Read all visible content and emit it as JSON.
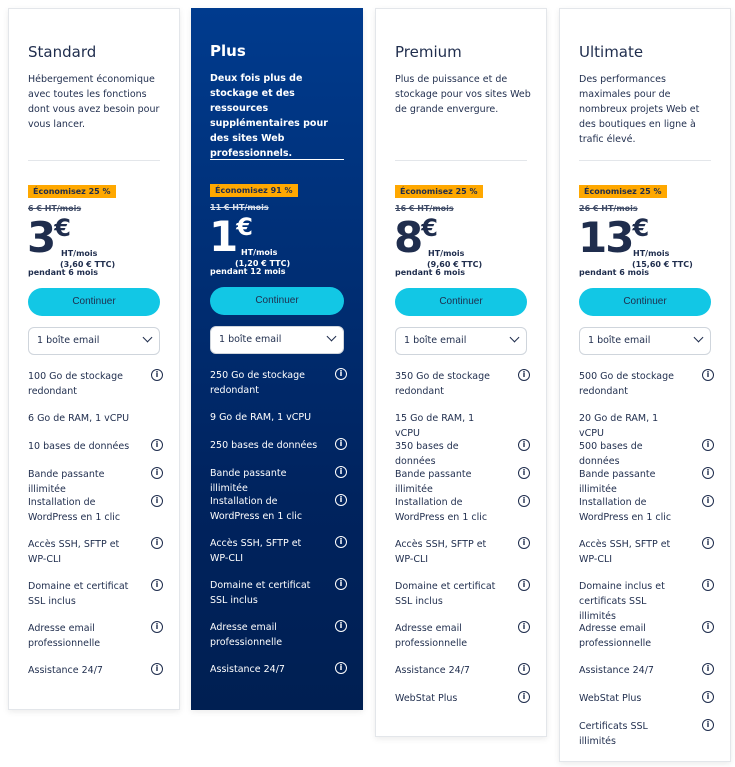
{
  "colors": {
    "accent": "#12c7e5",
    "badge": "#ffa800",
    "dark_card": "#003b8e",
    "text": "#1f2d4d"
  },
  "plans": [
    {
      "name": "Standard",
      "desc": "Hébergement économique avec toutes les fonctions dont vous avez besoin pour vous lancer.",
      "badge": "Économisez 25 %",
      "old_price": "6 € HT/mois",
      "price": "3",
      "currency": "€",
      "unit": "HT/mois",
      "ttc": "(3,60 € TTC)",
      "period": "pendant 6 mois",
      "button": "Continuer",
      "select": "1 boîte email",
      "features": [
        {
          "text": "100 Go de stockage redondant",
          "info": true
        },
        {
          "text": "6 Go de RAM, 1 vCPU",
          "info": false
        },
        {
          "text": "10 bases de données",
          "info": true
        },
        {
          "text": "Bande passante illimitée",
          "info": true
        },
        {
          "text": "Installation de WordPress en 1 clic",
          "info": true
        },
        {
          "text": "Accès SSH, SFTP et WP-CLI",
          "info": true
        },
        {
          "text": "Domaine et certificat SSL inclus",
          "info": true
        },
        {
          "text": "Adresse email professionnelle",
          "info": true
        },
        {
          "text": "Assistance 24/7",
          "info": true
        }
      ]
    },
    {
      "name": "Plus",
      "desc": "Deux fois plus de stockage et des ressources supplémentaires pour des sites Web professionnels.",
      "badge": "Économisez 91 %",
      "old_price": "11 € HT/mois",
      "price": "1",
      "currency": "€",
      "unit": "HT/mois",
      "ttc": "(1,20 € TTC)",
      "period": "pendant 12 mois",
      "button": "Continuer",
      "select": "1 boîte email",
      "features": [
        {
          "text": "250 Go de stockage redondant",
          "info": true
        },
        {
          "text": "9 Go de RAM, 1 vCPU",
          "info": false
        },
        {
          "text": "250 bases de données",
          "info": true
        },
        {
          "text": "Bande passante illimitée",
          "info": true
        },
        {
          "text": "Installation de WordPress en 1 clic",
          "info": true
        },
        {
          "text": "Accès SSH, SFTP et WP-CLI",
          "info": true
        },
        {
          "text": "Domaine et certificat SSL inclus",
          "info": true
        },
        {
          "text": "Adresse email professionnelle",
          "info": true
        },
        {
          "text": "Assistance 24/7",
          "info": true
        }
      ]
    },
    {
      "name": "Premium",
      "desc": "Plus de puissance et de stockage pour vos sites Web de grande envergure.",
      "badge": "Économisez 25 %",
      "old_price": "16 € HT/mois",
      "price": "8",
      "currency": "€",
      "unit": "HT/mois",
      "ttc": "(9,60 € TTC)",
      "period": "pendant 6 mois",
      "button": "Continuer",
      "select": "1 boîte email",
      "features": [
        {
          "text": "350 Go de stockage redondant",
          "info": true
        },
        {
          "text": "15 Go de RAM, 1 vCPU",
          "info": false
        },
        {
          "text": "350 bases de données",
          "info": true
        },
        {
          "text": "Bande passante illimitée",
          "info": true
        },
        {
          "text": "Installation de WordPress en 1 clic",
          "info": true
        },
        {
          "text": "Accès SSH, SFTP et WP-CLI",
          "info": true
        },
        {
          "text": "Domaine et certificat SSL inclus",
          "info": true
        },
        {
          "text": "Adresse email professionnelle",
          "info": true
        },
        {
          "text": "Assistance 24/7",
          "info": true
        },
        {
          "text": "WebStat Plus",
          "info": true
        }
      ]
    },
    {
      "name": "Ultimate",
      "desc": "Des performances maximales pour de nombreux projets Web et des boutiques en ligne à trafic élevé.",
      "badge": "Économisez 25 %",
      "old_price": "26 € HT/mois",
      "price": "13",
      "currency": "€",
      "unit": "HT/mois",
      "ttc": "(15,60 € TTC)",
      "period": "pendant 6 mois",
      "button": "Continuer",
      "select": "1 boîte email",
      "features": [
        {
          "text": "500 Go de stockage redondant",
          "info": true
        },
        {
          "text": "20 Go de RAM, 1 vCPU",
          "info": false
        },
        {
          "text": "500 bases de données",
          "info": true
        },
        {
          "text": "Bande passante illimitée",
          "info": true
        },
        {
          "text": "Installation de WordPress en 1 clic",
          "info": true
        },
        {
          "text": "Accès SSH, SFTP et WP-CLI",
          "info": true
        },
        {
          "text": "Domaine inclus et certificats SSL illimités",
          "info": true
        },
        {
          "text": "Adresse email professionnelle",
          "info": true
        },
        {
          "text": "Assistance 24/7",
          "info": true
        },
        {
          "text": "WebStat Plus",
          "info": true
        },
        {
          "text": "Certificats SSL illimités",
          "info": true
        }
      ]
    }
  ]
}
